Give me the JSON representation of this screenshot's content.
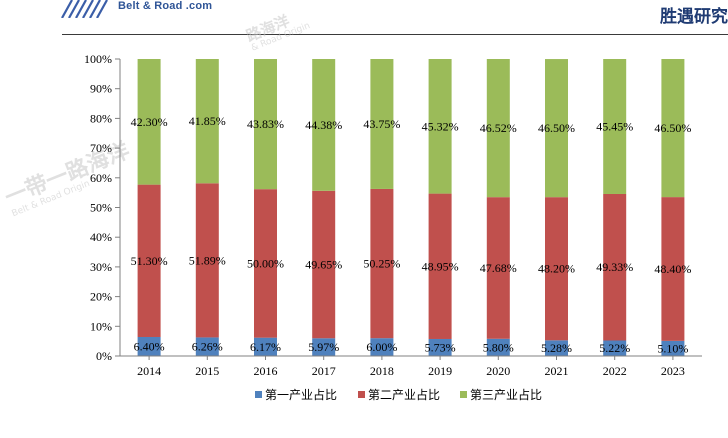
{
  "header": {
    "logo_text": "Belt & Road .com",
    "brand_text": "胜遇研究",
    "watermark_main": "一带一路海洋",
    "watermark_sub": "Belt & Road Origin",
    "watermark_main_2": "路海洋",
    "watermark_sub_2": "& Road Origin"
  },
  "colors": {
    "primary": "#4f81bd",
    "secondary": "#c0504d",
    "tertiary": "#9bbb59",
    "brand": "#1f3b73",
    "logo": "#2f5597"
  },
  "chart_data": {
    "type": "bar",
    "stacked": true,
    "percent": true,
    "categories": [
      "2014",
      "2015",
      "2016",
      "2017",
      "2018",
      "2019",
      "2020",
      "2021",
      "2022",
      "2023"
    ],
    "series": [
      {
        "name": "第一产业占比",
        "color": "#4f81bd",
        "values": [
          6.4,
          6.26,
          6.17,
          5.97,
          6.0,
          5.73,
          5.8,
          5.28,
          5.22,
          5.1
        ],
        "labels": [
          "6.40%",
          "6.26%",
          "6.17%",
          "5.97%",
          "6.00%",
          "5.73%",
          "5.80%",
          "5.28%",
          "5.22%",
          "5.10%"
        ]
      },
      {
        "name": "第二产业占比",
        "color": "#c0504d",
        "values": [
          51.3,
          51.89,
          50.0,
          49.65,
          50.25,
          48.95,
          47.68,
          48.2,
          49.33,
          48.4
        ],
        "labels": [
          "51.30%",
          "51.89%",
          "50.00%",
          "49.65%",
          "50.25%",
          "48.95%",
          "47.68%",
          "48.20%",
          "49.33%",
          "48.40%"
        ]
      },
      {
        "name": "第三产业占比",
        "color": "#9bbb59",
        "values": [
          42.3,
          41.85,
          43.83,
          44.38,
          43.75,
          45.32,
          46.52,
          46.5,
          45.45,
          46.5
        ],
        "labels": [
          "42.30%",
          "41.85%",
          "43.83%",
          "44.38%",
          "43.75%",
          "45.32%",
          "46.52%",
          "46.50%",
          "45.45%",
          "46.50%"
        ]
      }
    ],
    "y_ticks": [
      "0%",
      "10%",
      "20%",
      "30%",
      "40%",
      "50%",
      "60%",
      "70%",
      "80%",
      "90%",
      "100%"
    ],
    "ylim": [
      0,
      100
    ],
    "legend_position": "bottom",
    "grid": false
  }
}
